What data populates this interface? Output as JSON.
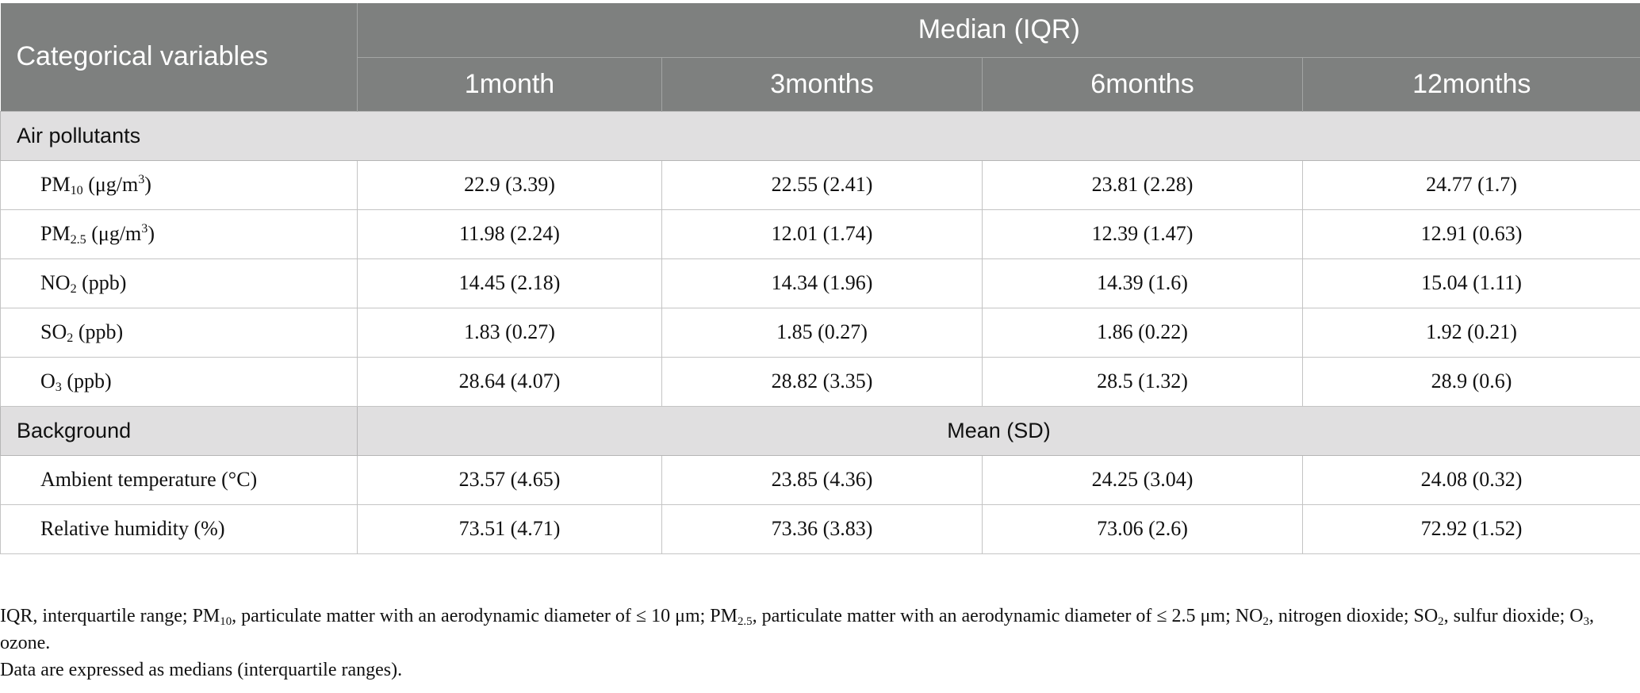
{
  "table": {
    "header": {
      "row_label": "Categorical variables",
      "group_label": "Median (IQR)",
      "columns": [
        "1month",
        "3months",
        "6months",
        "12months"
      ]
    },
    "sections": [
      {
        "label": "Air pollutants",
        "rows": [
          {
            "name": "PM",
            "sub": "10",
            "unit": " (μg/m",
            "sup": "3",
            "close": ")",
            "values": [
              "22.9 (3.39)",
              "22.55 (2.41)",
              "23.81 (2.28)",
              "24.77 (1.7)"
            ]
          },
          {
            "name": "PM",
            "sub": "2.5",
            "unit": " (μg/m",
            "sup": "3",
            "close": ")",
            "values": [
              "11.98 (2.24)",
              "12.01 (1.74)",
              "12.39 (1.47)",
              "12.91 (0.63)"
            ]
          },
          {
            "name": "NO",
            "sub": "2",
            "unit": " (ppb)",
            "values": [
              "14.45 (2.18)",
              "14.34 (1.96)",
              "14.39 (1.6)",
              "15.04 (1.11)"
            ]
          },
          {
            "name": "SO",
            "sub": "2",
            "unit": " (ppb)",
            "values": [
              "1.83 (0.27)",
              "1.85 (0.27)",
              "1.86 (0.22)",
              "1.92 (0.21)"
            ]
          },
          {
            "name": "O",
            "sub": "3",
            "unit": " (ppb)",
            "values": [
              "28.64 (4.07)",
              "28.82 (3.35)",
              "28.5 (1.32)",
              "28.9 (0.6)"
            ]
          }
        ]
      },
      {
        "label": "Background",
        "span_label": "Mean (SD)",
        "rows": [
          {
            "name": "Ambient temperature (°C)",
            "values": [
              "23.57 (4.65)",
              "23.85 (4.36)",
              "24.25 (3.04)",
              "24.08 (0.32)"
            ]
          },
          {
            "name": "Relative humidity (%)",
            "values": [
              "73.51 (4.71)",
              "73.36 (3.83)",
              "73.06 (2.6)",
              "72.92 (1.52)"
            ]
          }
        ]
      }
    ]
  },
  "footnotes": {
    "line1": {
      "a": "IQR, interquartile range; PM",
      "a_sub": "10",
      "b": ", particulate matter with an aerodynamic diameter of ≤ 10 μm; PM",
      "b_sub": "2.5",
      "c": ", particulate matter with an aerodynamic diameter of ≤ 2.5 μm; NO",
      "c_sub": "2",
      "d": ", nitrogen dioxide; SO",
      "d_sub": "2",
      "e": ", sulfur dioxide; O",
      "e_sub": "3",
      "f": ", ozone."
    },
    "line2": "Data are expressed as medians (interquartile ranges)."
  }
}
